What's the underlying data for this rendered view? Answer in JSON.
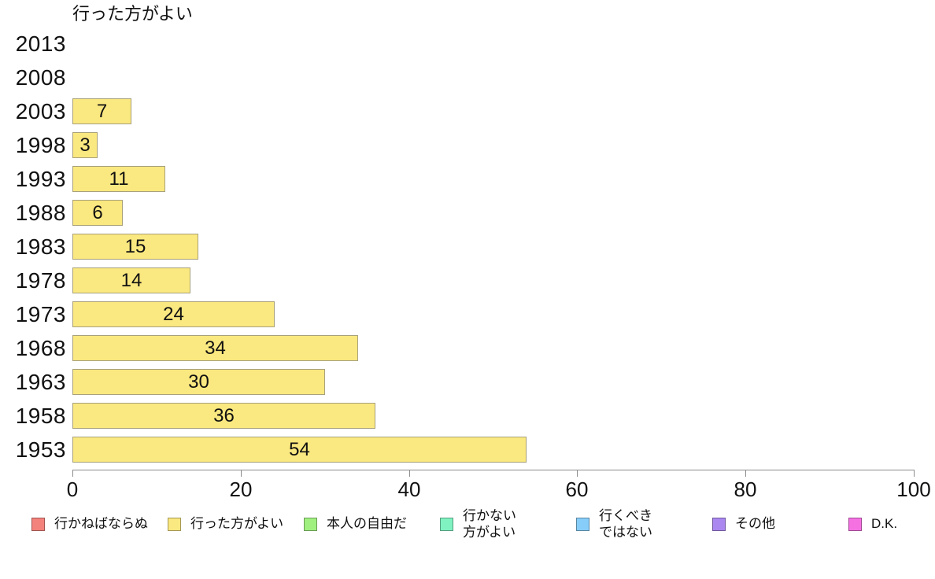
{
  "chart_data": {
    "type": "bar",
    "orientation": "horizontal",
    "title": "行った方がよい",
    "categories": [
      "2013",
      "2008",
      "2003",
      "1998",
      "1993",
      "1988",
      "1983",
      "1978",
      "1973",
      "1968",
      "1963",
      "1958",
      "1953"
    ],
    "values": [
      null,
      null,
      7,
      3,
      11,
      6,
      15,
      14,
      24,
      34,
      30,
      36,
      54
    ],
    "xlim": [
      0,
      100
    ],
    "xticks": [
      0,
      20,
      40,
      60,
      80,
      100
    ],
    "grid": "off",
    "bar_color": "#FAE880",
    "bar_border_color": "#A8A17B",
    "axis_color": "#8C8C8C",
    "legend_position": "bottom",
    "legend": [
      {
        "label": "行かねばならぬ",
        "color": "#F4827C"
      },
      {
        "label": "行った方がよい",
        "color": "#FAE880"
      },
      {
        "label": "本人の自由だ",
        "color": "#A0F080"
      },
      {
        "label": "行かない\n方がよい",
        "color": "#80F2C1"
      },
      {
        "label": "行くべき\nではない",
        "color": "#87CDF9"
      },
      {
        "label": "その他",
        "color": "#AB87F0"
      },
      {
        "label": "D.K.",
        "color": "#F571E2"
      }
    ]
  }
}
